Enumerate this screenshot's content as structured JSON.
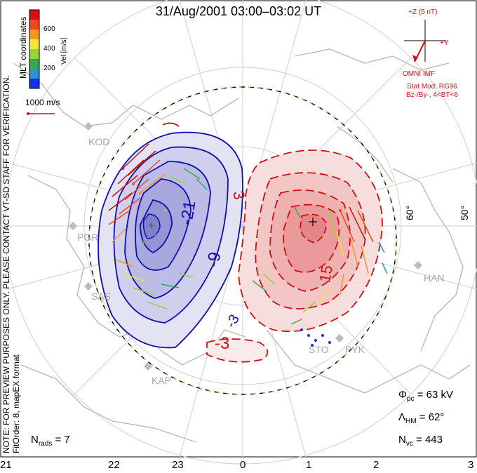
{
  "title": "31/Aug/2001 03:00–03:02 UT",
  "imf": {
    "z_label": "+Z (5 nT)",
    "y_label": "+Y",
    "source": "OMNI IMF",
    "stat_mod": "Stat Mod: RG96",
    "conditions": "Bz-/By-, 4<BT<6"
  },
  "colorbar": {
    "label": "Vel [m/s]",
    "ticks": [
      "600",
      "400",
      "200"
    ],
    "colors": [
      "#1530e8",
      "#2f8fd0",
      "#3aa55a",
      "#9ad23a",
      "#f0e63a",
      "#f39a1e",
      "#ec4a1e",
      "#d41010"
    ]
  },
  "coordinates_label": "MLT coordinates",
  "scale_vector": "1000 m/s",
  "notes": [
    "NOTE: FOR PREVIEW PURPOSES ONLY. PLEASE CONTACT VT-SD STAFF FOR VERIFICATION.",
    "FitOrder: 8, mapEX format"
  ],
  "stats": {
    "phi_symbol": "Φ",
    "phi_sub": "pc",
    "phi_value": " = 63 kV",
    "lambda_symbol": "Λ",
    "lambda_sub": "HM",
    "lambda_value": " = 62°",
    "nvc_symbol": "N",
    "nvc_sub": "vc",
    "nvc_value": " = 443",
    "nrads_symbol": "N",
    "nrads_sub": "rads",
    "nrads_value": " = 7"
  },
  "mlt_labels": [
    "21",
    "22",
    "23",
    "0",
    "1",
    "2",
    "3"
  ],
  "lat_labels": [
    "60°",
    "50°"
  ],
  "sites": [
    "KOD",
    "PGR",
    "SAS",
    "KAP",
    "HAN",
    "STO",
    "PYK"
  ],
  "contours": {
    "negative_labels": [
      "-21",
      "-9",
      "-3"
    ],
    "positive_labels": [
      "3",
      "15",
      "-3"
    ],
    "positive_color": "#d01010",
    "negative_color": "#1010b0"
  }
}
